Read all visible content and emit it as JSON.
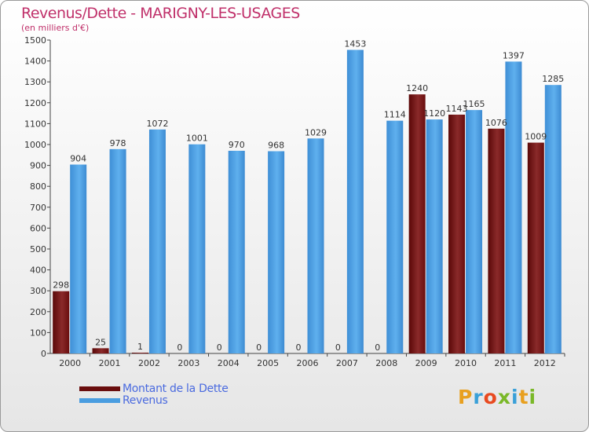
{
  "title": "Revenus/Dette - MARIGNY-LES-USAGES",
  "subtitle": "(en milliers d'€)",
  "colors": {
    "dette": "#7a1010",
    "revenus": "#4a9de0",
    "title": "#c0306a"
  },
  "legend": {
    "dette_label": "Montant de la Dette",
    "revenus_label": "Revenus"
  },
  "logo": {
    "text": "Proxiti"
  },
  "chart_data": {
    "type": "bar",
    "title": "Revenus/Dette - MARIGNY-LES-USAGES",
    "subtitle": "(en milliers d'€)",
    "categories": [
      "2000",
      "2001",
      "2002",
      "2003",
      "2004",
      "2005",
      "2006",
      "2007",
      "2008",
      "2009",
      "2010",
      "2011",
      "2012"
    ],
    "series": [
      {
        "name": "Montant de la Dette",
        "values": [
          298,
          25,
          1,
          0,
          0,
          0,
          0,
          0,
          0,
          1240,
          1143,
          1076,
          1009
        ]
      },
      {
        "name": "Revenus",
        "values": [
          904,
          978,
          1072,
          1001,
          970,
          968,
          1029,
          1453,
          1114,
          1120,
          1165,
          1397,
          1285
        ]
      }
    ],
    "ylim": [
      0,
      1500
    ],
    "yticks": [
      0,
      100,
      200,
      300,
      400,
      500,
      600,
      700,
      800,
      900,
      1000,
      1100,
      1200,
      1300,
      1400,
      1500
    ],
    "grid": false,
    "legend_position": "bottom-left"
  }
}
